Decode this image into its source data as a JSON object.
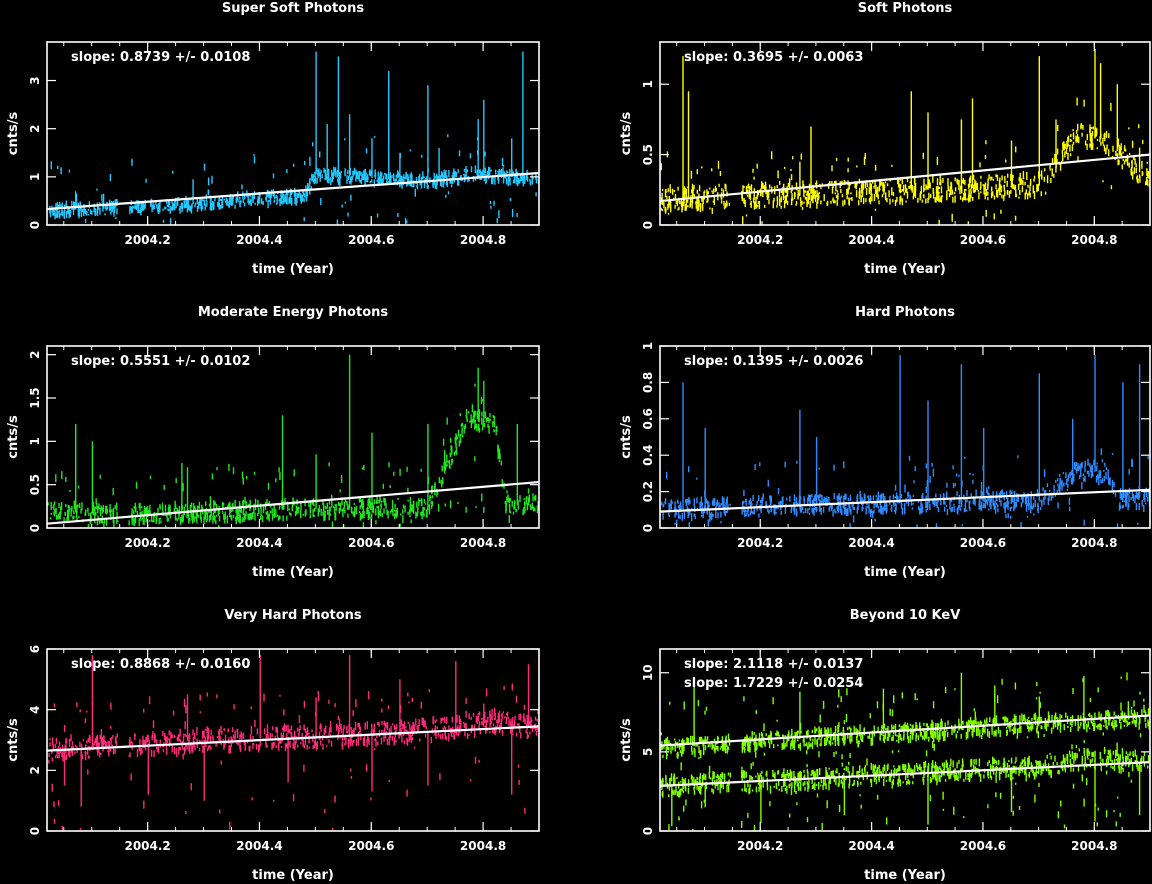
{
  "chart_data": [
    {
      "type": "scatter",
      "title": "Super Soft Photons",
      "xlabel": "time (Year)",
      "ylabel": "cnts/s",
      "xlim": [
        2004.02,
        2004.9
      ],
      "ylim": [
        0,
        3.8
      ],
      "xticks": [
        "2004.2",
        "2004.4",
        "2004.6",
        "2004.8"
      ],
      "xtick_values": [
        2004.2,
        2004.4,
        2004.6,
        2004.8
      ],
      "yticks": [
        "0",
        "1",
        "2",
        "3"
      ],
      "ytick_values": [
        0,
        1,
        2,
        3
      ],
      "color": "#22c8ff",
      "series": [
        {
          "slope_label": "slope: 0.8739 +/- 0.0108",
          "fit": [
            [
              2004.02,
              0.33
            ],
            [
              2004.9,
              1.08
            ]
          ],
          "baseline": [
            [
              2004.02,
              0.3
            ],
            [
              2004.14,
              0.35
            ],
            [
              2004.3,
              0.45
            ],
            [
              2004.48,
              0.6
            ],
            [
              2004.5,
              1.05
            ],
            [
              2004.7,
              0.9
            ],
            [
              2004.78,
              1.05
            ],
            [
              2004.9,
              0.95
            ]
          ],
          "spread": 0.12,
          "gaps": [
            [
              2004.145,
              2004.165
            ]
          ],
          "points": [
            [
              2004.07,
              0.7
            ],
            [
              2004.12,
              0.65
            ],
            [
              2004.28,
              0.95
            ],
            [
              2004.36,
              0.7
            ],
            [
              2004.5,
              3.6
            ],
            [
              2004.52,
              2.1
            ],
            [
              2004.54,
              3.5
            ],
            [
              2004.56,
              2.3
            ],
            [
              2004.6,
              1.8
            ],
            [
              2004.63,
              3.2
            ],
            [
              2004.65,
              1.5
            ],
            [
              2004.7,
              2.9
            ],
            [
              2004.72,
              1.6
            ],
            [
              2004.79,
              2.2
            ],
            [
              2004.8,
              2.6
            ],
            [
              2004.85,
              1.8
            ],
            [
              2004.87,
              3.6
            ]
          ]
        }
      ]
    },
    {
      "type": "scatter",
      "title": "Soft Photons",
      "xlabel": "time (Year)",
      "ylabel": "cnts/s",
      "xlim": [
        2004.02,
        2004.9
      ],
      "ylim": [
        0,
        1.3
      ],
      "xticks": [
        "2004.2",
        "2004.4",
        "2004.6",
        "2004.8"
      ],
      "xtick_values": [
        2004.2,
        2004.4,
        2004.6,
        2004.8
      ],
      "yticks": [
        "0",
        "0.5",
        "1"
      ],
      "ytick_values": [
        0,
        0.5,
        1
      ],
      "color": "#ffff00",
      "series": [
        {
          "slope_label": "slope: 0.3695 +/- 0.0063",
          "fit": [
            [
              2004.02,
              0.17
            ],
            [
              2004.9,
              0.5
            ]
          ],
          "baseline": [
            [
              2004.02,
              0.18
            ],
            [
              2004.14,
              0.2
            ],
            [
              2004.3,
              0.22
            ],
            [
              2004.5,
              0.25
            ],
            [
              2004.7,
              0.28
            ],
            [
              2004.77,
              0.65
            ],
            [
              2004.82,
              0.6
            ],
            [
              2004.9,
              0.3
            ]
          ],
          "spread": 0.08,
          "gaps": [
            [
              2004.145,
              2004.165
            ]
          ],
          "points": [
            [
              2004.06,
              1.2
            ],
            [
              2004.07,
              0.95
            ],
            [
              2004.27,
              0.45
            ],
            [
              2004.29,
              0.7
            ],
            [
              2004.47,
              0.95
            ],
            [
              2004.5,
              0.8
            ],
            [
              2004.56,
              0.75
            ],
            [
              2004.58,
              0.9
            ],
            [
              2004.65,
              0.6
            ],
            [
              2004.7,
              1.2
            ],
            [
              2004.73,
              0.75
            ],
            [
              2004.8,
              1.25
            ],
            [
              2004.81,
              1.15
            ],
            [
              2004.84,
              1.0
            ],
            [
              2004.88,
              0.55
            ]
          ]
        }
      ]
    },
    {
      "type": "scatter",
      "title": "Moderate Energy Photons",
      "xlabel": "time (Year)",
      "ylabel": "cnts/s",
      "xlim": [
        2004.02,
        2004.9
      ],
      "ylim": [
        0,
        2.1
      ],
      "xticks": [
        "2004.2",
        "2004.4",
        "2004.6",
        "2004.8"
      ],
      "xtick_values": [
        2004.2,
        2004.4,
        2004.6,
        2004.8
      ],
      "yticks": [
        "0",
        "0.5",
        "1",
        "1.5",
        "2"
      ],
      "ytick_values": [
        0,
        0.5,
        1,
        1.5,
        2
      ],
      "color": "#22e522",
      "series": [
        {
          "slope_label": "slope: 0.5551 +/- 0.0102",
          "fit": [
            [
              2004.02,
              0.05
            ],
            [
              2004.9,
              0.53
            ]
          ],
          "baseline": [
            [
              2004.02,
              0.2
            ],
            [
              2004.14,
              0.15
            ],
            [
              2004.3,
              0.18
            ],
            [
              2004.5,
              0.22
            ],
            [
              2004.7,
              0.24
            ],
            [
              2004.77,
              1.25
            ],
            [
              2004.82,
              1.2
            ],
            [
              2004.84,
              0.25
            ],
            [
              2004.9,
              0.3
            ]
          ],
          "spread": 0.1,
          "gaps": [
            [
              2004.145,
              2004.165
            ]
          ],
          "points": [
            [
              2004.07,
              1.2
            ],
            [
              2004.1,
              1.0
            ],
            [
              2004.26,
              0.75
            ],
            [
              2004.27,
              0.7
            ],
            [
              2004.44,
              1.3
            ],
            [
              2004.5,
              0.85
            ],
            [
              2004.56,
              2.0
            ],
            [
              2004.6,
              1.1
            ],
            [
              2004.7,
              1.2
            ],
            [
              2004.73,
              0.9
            ],
            [
              2004.79,
              1.85
            ],
            [
              2004.8,
              1.7
            ],
            [
              2004.86,
              1.2
            ]
          ]
        }
      ]
    },
    {
      "type": "scatter",
      "title": "Hard Photons",
      "xlabel": "time (Year)",
      "ylabel": "cnts/s",
      "xlim": [
        2004.02,
        2004.9
      ],
      "ylim": [
        0,
        1
      ],
      "xticks": [
        "2004.2",
        "2004.4",
        "2004.6",
        "2004.8"
      ],
      "xtick_values": [
        2004.2,
        2004.4,
        2004.6,
        2004.8
      ],
      "yticks": [
        "0",
        "0.2",
        "0.4",
        "0.6",
        "0.8",
        "1"
      ],
      "ytick_values": [
        0,
        0.2,
        0.4,
        0.6,
        0.8,
        1
      ],
      "color": "#2f8cff",
      "series": [
        {
          "slope_label": "slope: 0.1395 +/- 0.0026",
          "fit": [
            [
              2004.02,
              0.09
            ],
            [
              2004.9,
              0.21
            ]
          ],
          "baseline": [
            [
              2004.02,
              0.1
            ],
            [
              2004.14,
              0.11
            ],
            [
              2004.3,
              0.13
            ],
            [
              2004.5,
              0.14
            ],
            [
              2004.7,
              0.15
            ],
            [
              2004.77,
              0.32
            ],
            [
              2004.82,
              0.3
            ],
            [
              2004.84,
              0.16
            ],
            [
              2004.9,
              0.17
            ]
          ],
          "spread": 0.05,
          "gaps": [
            [
              2004.145,
              2004.165
            ]
          ],
          "points": [
            [
              2004.06,
              0.8
            ],
            [
              2004.1,
              0.55
            ],
            [
              2004.27,
              0.65
            ],
            [
              2004.3,
              0.5
            ],
            [
              2004.45,
              0.95
            ],
            [
              2004.5,
              0.7
            ],
            [
              2004.56,
              0.9
            ],
            [
              2004.6,
              0.55
            ],
            [
              2004.7,
              0.85
            ],
            [
              2004.76,
              0.6
            ],
            [
              2004.8,
              0.95
            ],
            [
              2004.85,
              0.8
            ],
            [
              2004.88,
              0.9
            ]
          ]
        }
      ]
    },
    {
      "type": "scatter",
      "title": "Very Hard  Photons",
      "xlabel": "time (Year)",
      "ylabel": "cnts/s",
      "xlim": [
        2004.02,
        2004.9
      ],
      "ylim": [
        0,
        6
      ],
      "xticks": [
        "2004.2",
        "2004.4",
        "2004.6",
        "2004.8"
      ],
      "xtick_values": [
        2004.2,
        2004.4,
        2004.6,
        2004.8
      ],
      "yticks": [
        "0",
        "2",
        "4",
        "6"
      ],
      "ytick_values": [
        0,
        2,
        4,
        6
      ],
      "color": "#ff2a7a",
      "series": [
        {
          "slope_label": "slope: 0.8868 +/- 0.0160",
          "fit": [
            [
              2004.02,
              2.65
            ],
            [
              2004.9,
              3.45
            ]
          ],
          "baseline": [
            [
              2004.02,
              2.7
            ],
            [
              2004.14,
              2.8
            ],
            [
              2004.3,
              3.0
            ],
            [
              2004.5,
              3.1
            ],
            [
              2004.7,
              3.3
            ],
            [
              2004.78,
              3.5
            ],
            [
              2004.82,
              3.6
            ],
            [
              2004.9,
              3.4
            ]
          ],
          "spread": 0.35,
          "gaps": [
            [
              2004.145,
              2004.165
            ]
          ],
          "points": [
            [
              2004.05,
              1.5
            ],
            [
              2004.08,
              0.8
            ],
            [
              2004.1,
              5.8
            ],
            [
              2004.2,
              1.2
            ],
            [
              2004.27,
              4.5
            ],
            [
              2004.3,
              1.0
            ],
            [
              2004.4,
              5.8
            ],
            [
              2004.45,
              1.6
            ],
            [
              2004.5,
              4.4
            ],
            [
              2004.56,
              5.8
            ],
            [
              2004.6,
              1.3
            ],
            [
              2004.65,
              5.0
            ],
            [
              2004.7,
              1.5
            ],
            [
              2004.75,
              5.6
            ],
            [
              2004.8,
              4.2
            ],
            [
              2004.85,
              1.2
            ],
            [
              2004.88,
              5.5
            ]
          ]
        }
      ]
    },
    {
      "type": "scatter",
      "title": "Beyond 10 KeV",
      "xlabel": "time (Year)",
      "ylabel": "cnts/s",
      "xlim": [
        2004.02,
        2004.9
      ],
      "ylim": [
        0,
        11.5
      ],
      "xticks": [
        "2004.2",
        "2004.4",
        "2004.6",
        "2004.8"
      ],
      "xtick_values": [
        2004.2,
        2004.4,
        2004.6,
        2004.8
      ],
      "yticks": [
        "0",
        "5",
        "10"
      ],
      "ytick_values": [
        0,
        5,
        10
      ],
      "color": "#80ff00",
      "series": [
        {
          "slope_label": "slope: 2.1118 +/- 0.0137",
          "fit": [
            [
              2004.02,
              5.4
            ],
            [
              2004.9,
              7.3
            ]
          ],
          "baseline": [
            [
              2004.02,
              5.2
            ],
            [
              2004.14,
              5.5
            ],
            [
              2004.3,
              5.9
            ],
            [
              2004.5,
              6.3
            ],
            [
              2004.7,
              6.8
            ],
            [
              2004.9,
              7.1
            ]
          ],
          "spread": 0.5,
          "gaps": [
            [
              2004.145,
              2004.165
            ]
          ],
          "points": [
            [
              2004.08,
              9.5
            ],
            [
              2004.27,
              8.8
            ],
            [
              2004.42,
              9.0
            ],
            [
              2004.56,
              10.0
            ],
            [
              2004.62,
              9.2
            ],
            [
              2004.7,
              8.5
            ],
            [
              2004.78,
              9.8
            ],
            [
              2004.86,
              8.2
            ]
          ]
        },
        {
          "slope_label": "slope: 1.7229 +/- 0.0254",
          "fit": [
            [
              2004.02,
              2.85
            ],
            [
              2004.9,
              4.35
            ]
          ],
          "baseline": [
            [
              2004.02,
              2.8
            ],
            [
              2004.14,
              3.0
            ],
            [
              2004.3,
              3.3
            ],
            [
              2004.5,
              3.7
            ],
            [
              2004.7,
              4.0
            ],
            [
              2004.78,
              4.6
            ],
            [
              2004.82,
              4.5
            ],
            [
              2004.9,
              4.3
            ]
          ],
          "spread": 0.6,
          "gaps": [
            [
              2004.145,
              2004.165
            ]
          ],
          "points": [
            [
              2004.04,
              0.3
            ],
            [
              2004.1,
              1.5
            ],
            [
              2004.2,
              0.5
            ],
            [
              2004.35,
              1.0
            ],
            [
              2004.5,
              0.4
            ],
            [
              2004.65,
              1.2
            ],
            [
              2004.8,
              0.6
            ],
            [
              2004.88,
              1.0
            ]
          ]
        }
      ]
    }
  ]
}
